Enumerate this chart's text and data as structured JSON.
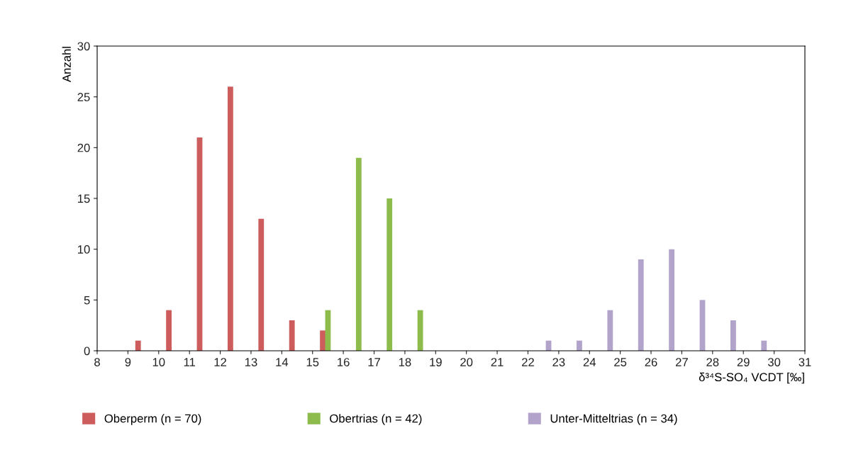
{
  "chart_data": {
    "type": "bar",
    "ylabel": "Anzahl",
    "xlabel": "δ³⁴S-SO₄ VCDT [‰]",
    "series": [
      {
        "name": "Oberperm (n = 70)",
        "color": "#cd5c5c",
        "x": [
          9.33,
          10.33,
          11.33,
          12.33,
          13.33,
          14.33,
          15.33
        ],
        "values": [
          1,
          4,
          21,
          26,
          13,
          3,
          2
        ]
      },
      {
        "name": "Obertrias (n = 42)",
        "color": "#8dbb4c",
        "x": [
          15.5,
          16.5,
          17.5,
          18.5
        ],
        "values": [
          4,
          19,
          15,
          4
        ]
      },
      {
        "name": "Unter-Mitteltrias (n = 34)",
        "color": "#b2a3cb",
        "x": [
          22.67,
          23.67,
          24.67,
          25.67,
          26.67,
          27.67,
          28.67,
          29.67
        ],
        "values": [
          1,
          1,
          4,
          9,
          10,
          5,
          3,
          1
        ]
      }
    ],
    "xlim": [
      8,
      31
    ],
    "xticks": [
      8,
      9,
      10,
      11,
      12,
      13,
      14,
      15,
      16,
      17,
      18,
      19,
      20,
      21,
      22,
      23,
      24,
      25,
      26,
      27,
      28,
      29,
      30,
      31
    ],
    "ylim": [
      0,
      30
    ],
    "yticks": [
      0,
      5,
      10,
      15,
      20,
      25,
      30
    ],
    "grid": false,
    "legend": "bottom"
  }
}
